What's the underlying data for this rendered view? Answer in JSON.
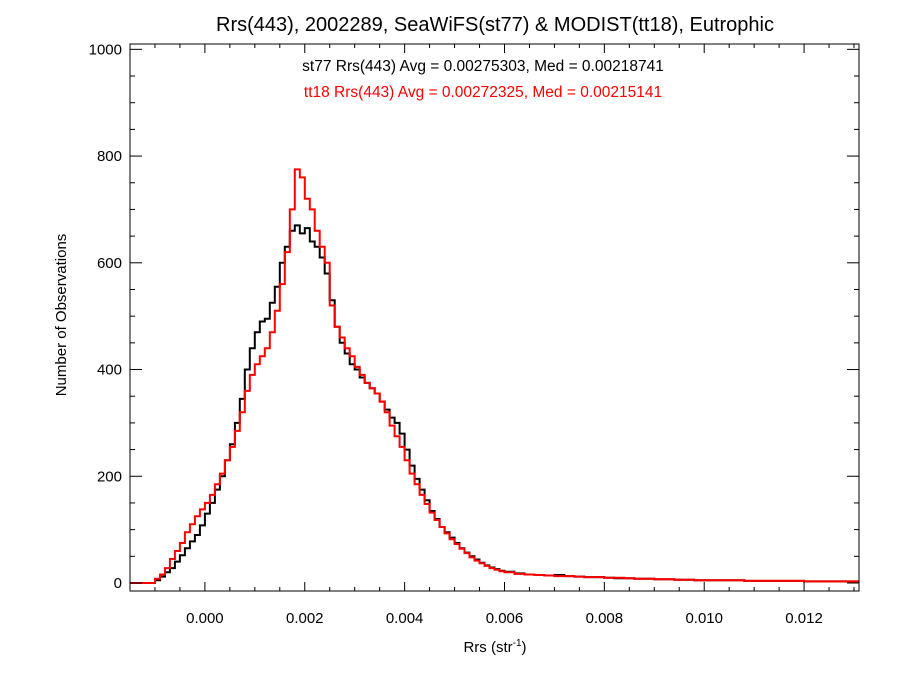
{
  "chart_data": {
    "type": "line",
    "title": "Rrs(443), 2002289, SeaWiFS(st77) & MODIST(tt18), Eutrophic",
    "xlabel": "Rrs (str",
    "xlabel_sup": "-1",
    "xlabel_close": ")",
    "ylabel": "Number of Observations",
    "xlim": [
      -0.0015,
      0.0131
    ],
    "ylim": [
      -15,
      1010
    ],
    "x_ticks": [
      {
        "value": 0.0,
        "label": "0.000"
      },
      {
        "value": 0.002,
        "label": "0.002"
      },
      {
        "value": 0.004,
        "label": "0.004"
      },
      {
        "value": 0.006,
        "label": "0.006"
      },
      {
        "value": 0.008,
        "label": "0.008"
      },
      {
        "value": 0.01,
        "label": "0.010"
      },
      {
        "value": 0.012,
        "label": "0.012"
      }
    ],
    "y_ticks": [
      {
        "value": 0,
        "label": "0"
      },
      {
        "value": 200,
        "label": "200"
      },
      {
        "value": 400,
        "label": "400"
      },
      {
        "value": 600,
        "label": "600"
      },
      {
        "value": 800,
        "label": "800"
      },
      {
        "value": 1000,
        "label": "1000"
      }
    ],
    "annotations": [
      {
        "text": "st77 Rrs(443) Avg = 0.00275303, Med = 0.00218741",
        "color": "#000000"
      },
      {
        "text": "tt18 Rrs(443) Avg = 0.00272325, Med = 0.00215141",
        "color": "#ff0000"
      }
    ],
    "series": [
      {
        "name": "st77",
        "color": "#000000",
        "points": [
          [
            -0.0015,
            0
          ],
          [
            -0.0011,
            0
          ],
          [
            -0.001,
            5
          ],
          [
            -0.0009,
            12
          ],
          [
            -0.0008,
            20
          ],
          [
            -0.0007,
            28
          ],
          [
            -0.0006,
            40
          ],
          [
            -0.0005,
            52
          ],
          [
            -0.0004,
            65
          ],
          [
            -0.0003,
            78
          ],
          [
            -0.0002,
            90
          ],
          [
            -0.0001,
            108
          ],
          [
            0.0,
            130
          ],
          [
            0.0001,
            150
          ],
          [
            0.0002,
            175
          ],
          [
            0.0003,
            200
          ],
          [
            0.0004,
            230
          ],
          [
            0.0005,
            260
          ],
          [
            0.0006,
            300
          ],
          [
            0.0007,
            345
          ],
          [
            0.0008,
            400
          ],
          [
            0.0009,
            440
          ],
          [
            0.001,
            470
          ],
          [
            0.0011,
            490
          ],
          [
            0.0012,
            495
          ],
          [
            0.0013,
            525
          ],
          [
            0.0014,
            555
          ],
          [
            0.0015,
            600
          ],
          [
            0.0016,
            630
          ],
          [
            0.0017,
            660
          ],
          [
            0.0018,
            670
          ],
          [
            0.0019,
            655
          ],
          [
            0.002,
            665
          ],
          [
            0.0021,
            640
          ],
          [
            0.0022,
            630
          ],
          [
            0.0023,
            610
          ],
          [
            0.0024,
            580
          ],
          [
            0.0025,
            530
          ],
          [
            0.0026,
            480
          ],
          [
            0.0027,
            450
          ],
          [
            0.0028,
            430
          ],
          [
            0.0029,
            410
          ],
          [
            0.003,
            400
          ],
          [
            0.0031,
            385
          ],
          [
            0.0032,
            375
          ],
          [
            0.0033,
            365
          ],
          [
            0.0034,
            355
          ],
          [
            0.0035,
            340
          ],
          [
            0.0036,
            325
          ],
          [
            0.0037,
            310
          ],
          [
            0.0038,
            300
          ],
          [
            0.0039,
            280
          ],
          [
            0.004,
            250
          ],
          [
            0.0041,
            220
          ],
          [
            0.0042,
            195
          ],
          [
            0.0043,
            175
          ],
          [
            0.0044,
            155
          ],
          [
            0.0045,
            135
          ],
          [
            0.0046,
            120
          ],
          [
            0.0047,
            105
          ],
          [
            0.0048,
            95
          ],
          [
            0.0049,
            85
          ],
          [
            0.005,
            75
          ],
          [
            0.0051,
            65
          ],
          [
            0.0052,
            57
          ],
          [
            0.0053,
            50
          ],
          [
            0.0054,
            44
          ],
          [
            0.0055,
            38
          ],
          [
            0.0056,
            33
          ],
          [
            0.0057,
            29
          ],
          [
            0.0058,
            26
          ],
          [
            0.0059,
            23
          ],
          [
            0.006,
            21
          ],
          [
            0.0062,
            18
          ],
          [
            0.0064,
            16
          ],
          [
            0.0066,
            15
          ],
          [
            0.0068,
            14
          ],
          [
            0.007,
            15
          ],
          [
            0.0072,
            13
          ],
          [
            0.0074,
            12
          ],
          [
            0.0076,
            11
          ],
          [
            0.0078,
            11
          ],
          [
            0.008,
            10
          ],
          [
            0.0082,
            9
          ],
          [
            0.0084,
            9
          ],
          [
            0.0086,
            8
          ],
          [
            0.0088,
            8
          ],
          [
            0.009,
            7
          ],
          [
            0.0092,
            7
          ],
          [
            0.0094,
            6
          ],
          [
            0.0096,
            6
          ],
          [
            0.0098,
            5
          ],
          [
            0.01,
            5
          ],
          [
            0.0104,
            5
          ],
          [
            0.0108,
            4
          ],
          [
            0.0112,
            4
          ],
          [
            0.0116,
            4
          ],
          [
            0.012,
            3
          ],
          [
            0.0124,
            3
          ],
          [
            0.0128,
            3
          ],
          [
            0.0131,
            3
          ]
        ]
      },
      {
        "name": "tt18",
        "color": "#ff0000",
        "points": [
          [
            -0.0015,
            0
          ],
          [
            -0.0011,
            0
          ],
          [
            -0.001,
            8
          ],
          [
            -0.0009,
            16
          ],
          [
            -0.0008,
            28
          ],
          [
            -0.0007,
            45
          ],
          [
            -0.0006,
            60
          ],
          [
            -0.0005,
            75
          ],
          [
            -0.0004,
            95
          ],
          [
            -0.0003,
            110
          ],
          [
            -0.0002,
            125
          ],
          [
            -0.0001,
            138
          ],
          [
            0.0,
            150
          ],
          [
            0.0001,
            165
          ],
          [
            0.0002,
            185
          ],
          [
            0.0003,
            205
          ],
          [
            0.0004,
            230
          ],
          [
            0.0005,
            255
          ],
          [
            0.0006,
            285
          ],
          [
            0.0007,
            320
          ],
          [
            0.0008,
            360
          ],
          [
            0.0009,
            390
          ],
          [
            0.001,
            410
          ],
          [
            0.0011,
            425
          ],
          [
            0.0012,
            440
          ],
          [
            0.0013,
            470
          ],
          [
            0.0014,
            510
          ],
          [
            0.0015,
            560
          ],
          [
            0.0016,
            620
          ],
          [
            0.0017,
            700
          ],
          [
            0.0018,
            775
          ],
          [
            0.0019,
            760
          ],
          [
            0.002,
            720
          ],
          [
            0.0021,
            700
          ],
          [
            0.0022,
            660
          ],
          [
            0.0023,
            630
          ],
          [
            0.0024,
            600
          ],
          [
            0.0025,
            520
          ],
          [
            0.0026,
            480
          ],
          [
            0.0027,
            460
          ],
          [
            0.0028,
            440
          ],
          [
            0.0029,
            425
          ],
          [
            0.003,
            405
          ],
          [
            0.0031,
            390
          ],
          [
            0.0032,
            375
          ],
          [
            0.0033,
            365
          ],
          [
            0.0034,
            355
          ],
          [
            0.0035,
            340
          ],
          [
            0.0036,
            320
          ],
          [
            0.0037,
            295
          ],
          [
            0.0038,
            275
          ],
          [
            0.0039,
            255
          ],
          [
            0.004,
            230
          ],
          [
            0.0041,
            205
          ],
          [
            0.0042,
            185
          ],
          [
            0.0043,
            165
          ],
          [
            0.0044,
            148
          ],
          [
            0.0045,
            132
          ],
          [
            0.0046,
            118
          ],
          [
            0.0047,
            105
          ],
          [
            0.0048,
            93
          ],
          [
            0.0049,
            82
          ],
          [
            0.005,
            73
          ],
          [
            0.0051,
            64
          ],
          [
            0.0052,
            56
          ],
          [
            0.0053,
            48
          ],
          [
            0.0054,
            42
          ],
          [
            0.0055,
            37
          ],
          [
            0.0056,
            32
          ],
          [
            0.0057,
            28
          ],
          [
            0.0058,
            25
          ],
          [
            0.0059,
            22
          ],
          [
            0.006,
            20
          ],
          [
            0.0062,
            17
          ],
          [
            0.0064,
            16
          ],
          [
            0.0066,
            15
          ],
          [
            0.0068,
            14
          ],
          [
            0.007,
            13
          ],
          [
            0.0072,
            13
          ],
          [
            0.0074,
            12
          ],
          [
            0.0076,
            11
          ],
          [
            0.0078,
            11
          ],
          [
            0.008,
            10
          ],
          [
            0.0082,
            10
          ],
          [
            0.0084,
            9
          ],
          [
            0.0086,
            8
          ],
          [
            0.0088,
            8
          ],
          [
            0.009,
            7
          ],
          [
            0.0092,
            7
          ],
          [
            0.0094,
            6
          ],
          [
            0.0096,
            6
          ],
          [
            0.0098,
            5
          ],
          [
            0.01,
            5
          ],
          [
            0.0104,
            5
          ],
          [
            0.0108,
            4
          ],
          [
            0.0112,
            4
          ],
          [
            0.0116,
            4
          ],
          [
            0.012,
            3
          ],
          [
            0.0124,
            3
          ],
          [
            0.0128,
            3
          ],
          [
            0.0131,
            3
          ]
        ]
      }
    ]
  }
}
